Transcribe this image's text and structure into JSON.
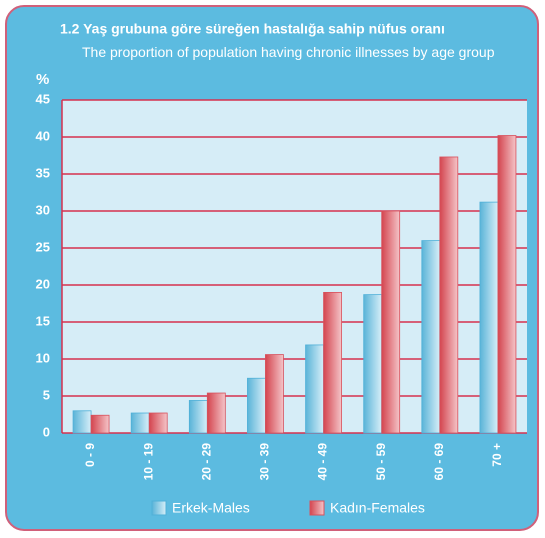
{
  "chart_data": {
    "type": "bar",
    "title": "1.2 Yaş grubuna göre süreğen hastalığa sahip nüfus oranı",
    "subtitle": "The proportion of population having chronic illnesses by age group",
    "y_label": "%",
    "categories": [
      "0 - 9",
      "10 - 19",
      "20 - 29",
      "30 - 39",
      "40 - 49",
      "50 - 59",
      "60 - 69",
      "70 +"
    ],
    "series": [
      {
        "name": "Erkek-Males",
        "color": "#4fb0d8",
        "values": [
          3.0,
          2.7,
          4.4,
          7.4,
          11.9,
          18.7,
          26.0,
          31.2
        ]
      },
      {
        "name": "Kadın-Females",
        "color": "#d8505c",
        "values": [
          2.4,
          2.7,
          5.4,
          10.6,
          19.0,
          30.0,
          37.3,
          40.2
        ]
      }
    ],
    "ylim": [
      0,
      45
    ],
    "yticks": [
      0,
      5,
      10,
      15,
      20,
      25,
      30,
      35,
      40,
      45
    ],
    "grid": true
  }
}
